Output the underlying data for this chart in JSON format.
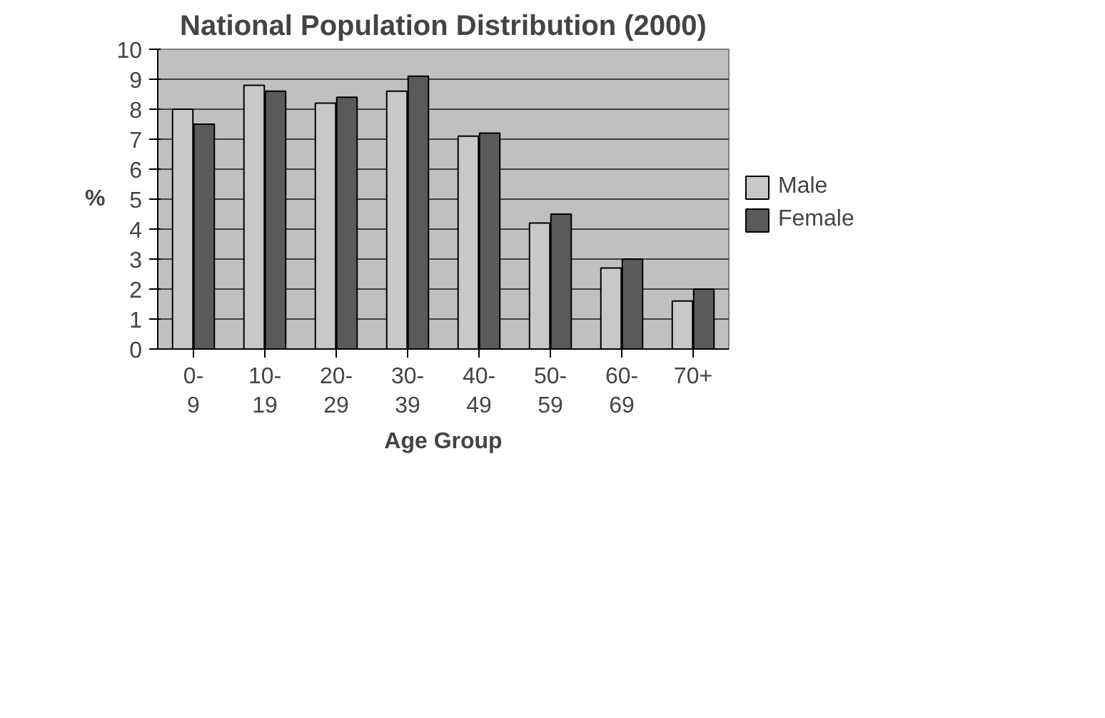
{
  "chart_data": {
    "type": "bar",
    "title": "National Population Distribution (2000)",
    "xlabel": "Age Group",
    "ylabel": "%",
    "categories": [
      "0-9",
      "10-19",
      "20-29",
      "30-39",
      "40-49",
      "50-59",
      "60-69",
      "70+"
    ],
    "series": [
      {
        "name": "Male",
        "color": "#c8c8c8",
        "values": [
          8.0,
          8.8,
          8.2,
          8.6,
          7.1,
          4.2,
          2.7,
          1.6
        ]
      },
      {
        "name": "Female",
        "color": "#5a5a5a",
        "values": [
          7.5,
          8.6,
          8.4,
          9.1,
          7.2,
          4.5,
          3.0,
          2.0
        ]
      }
    ],
    "ylim": [
      0,
      10
    ],
    "yticks": [
      0,
      1,
      2,
      3,
      4,
      5,
      6,
      7,
      8,
      9,
      10
    ],
    "grid": "y",
    "legend": "right"
  }
}
